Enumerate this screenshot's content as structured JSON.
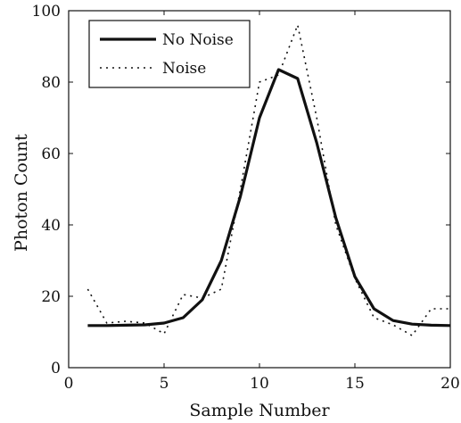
{
  "chart_data": {
    "type": "line",
    "xlabel": "Sample Number",
    "ylabel": "Photon Count",
    "xlim": [
      0,
      20
    ],
    "ylim": [
      0,
      100
    ],
    "xticks": [
      "0",
      "5",
      "10",
      "15",
      "20"
    ],
    "yticks": [
      "0",
      "20",
      "40",
      "60",
      "80",
      "100"
    ],
    "grid": false,
    "legend_position": "top-left",
    "x": [
      1,
      2,
      3,
      4,
      5,
      6,
      7,
      8,
      9,
      10,
      11,
      12,
      13,
      14,
      15,
      16,
      17,
      18,
      19,
      20
    ],
    "series": [
      {
        "name": "No Noise",
        "style": "solid",
        "color": "#111111",
        "values": [
          11.8,
          11.8,
          11.9,
          12.0,
          12.5,
          14.0,
          19.0,
          30.0,
          48.0,
          70.0,
          83.5,
          81.0,
          63.0,
          42.0,
          25.5,
          16.5,
          13.2,
          12.2,
          11.9,
          11.8
        ]
      },
      {
        "name": "Noise",
        "style": "dotted",
        "color": "#111111",
        "values": [
          22.0,
          12.5,
          13.0,
          12.5,
          9.5,
          20.5,
          19.5,
          22.0,
          50.0,
          80.0,
          82.0,
          96.0,
          70.0,
          40.0,
          25.0,
          14.0,
          12.0,
          9.0,
          16.5,
          16.5
        ]
      }
    ]
  }
}
